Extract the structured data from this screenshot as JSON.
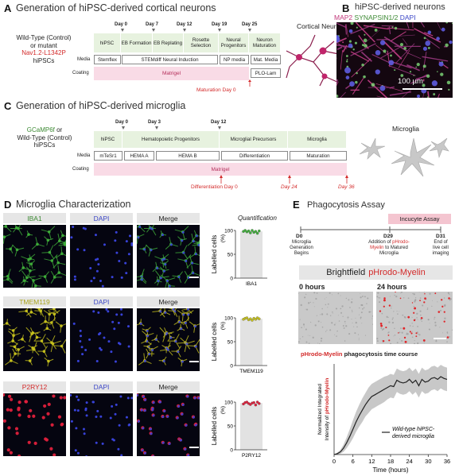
{
  "panelA": {
    "label": "A",
    "title": "Generation of hiPSC-derived cortical neurons",
    "left_text": [
      "Wild-Type (Control)",
      "or mutant"
    ],
    "mutant": "Nav1.2-L1342P",
    "hipscs": "hiPSCs",
    "days": [
      "Day 0",
      "Day 7",
      "Day 12",
      "Day 19",
      "Day 25"
    ],
    "stages": [
      "hiPSC",
      "EB Formation",
      "EB Replating",
      "Rosette Selection",
      "Neural Progenitors",
      "Neuron Maturation"
    ],
    "media_label": "Media",
    "media": [
      "Stemflex",
      "STEMdiff Neural Induction",
      "NP media",
      "Mat. Media"
    ],
    "coating_label": "Coating",
    "coating": [
      "Matrigel",
      "PLO-Lam"
    ],
    "maturation_note": "Maturation Day 0",
    "cell_label": "Cortical Neurons"
  },
  "panelB": {
    "label": "B",
    "title": "hiPSC-derived neurons",
    "stain1": "MAP2",
    "stain2": "SYNAPSIN1/2",
    "stain3": "DAPI",
    "scale": "100 µm"
  },
  "panelC": {
    "label": "C",
    "title": "Generation of hiPSC-derived microglia",
    "reporter": "GCaMP6f",
    "left_text": [
      "or",
      "Wild-Type (Control)",
      "hiPSCs"
    ],
    "days": [
      "Day 0",
      "Day 3",
      "Day 12"
    ],
    "stages": [
      "hiPSC",
      "Hematopoietic Progenitors",
      "Microglial Precursors",
      "Microglia"
    ],
    "media_label": "Media",
    "media": [
      "mTeSr1",
      "HEMA A",
      "HEMA B",
      "Differentiation",
      "Maturation"
    ],
    "coating_label": "Coating",
    "coating": "Matrigel",
    "diff_note": "Differentiation Day 0",
    "day24": "Day 24",
    "day36": "Day 36",
    "cell_label": "Microglia"
  },
  "panelD": {
    "label": "D",
    "title": "Microglia Characterization",
    "col_headers": [
      "DAPI",
      "Merge"
    ],
    "rows": [
      {
        "marker": "IBA1",
        "color": "#3fae3a"
      },
      {
        "marker": "TMEM119",
        "color": "#c7c21d"
      },
      {
        "marker": "P2RY12",
        "color": "#e0203c"
      }
    ],
    "quant_title": "Quantification",
    "ylabel": "Labelled cells",
    "unit": "(%)",
    "yticks": [
      "100",
      "50",
      "0"
    ]
  },
  "panelE": {
    "label": "E",
    "title": "Phagocytosis Assay",
    "incucyte": "Incucyte Assay",
    "d0": "D0",
    "d0_desc": [
      "Microglia",
      "Generation",
      "Begins"
    ],
    "d29": "D29",
    "d29_desc_pre": "Addition of",
    "d29_red": "pHrodo-",
    "d29_red2": "Myelin",
    "d29_desc_post": [
      "to Matured",
      "Microglia"
    ],
    "d31": "D31",
    "d31_desc": [
      "End of",
      "live cell",
      "imaging"
    ],
    "bf_title": "Brightfield",
    "bf_red": "pHrodo-Myelin",
    "time0": "0 hours",
    "time24": "24 hours",
    "chart_title_red": "pHrodo-Myelin",
    "chart_title_rest": "phagocytosis time course",
    "ylabel1": "Normalized Integrated",
    "ylabel2_pre": "Intensity of ",
    "ylabel2_red": "pHrodo-Myelin",
    "legend": [
      "Wild-type hiPSC-",
      "derived microglia"
    ]
  },
  "chart_data": [
    {
      "type": "scatter",
      "title": "Quantification",
      "categories": [
        "IBA1",
        "TMEM119",
        "P2RY12"
      ],
      "series": [
        {
          "name": "IBA1",
          "values": [
            98,
            100,
            97,
            99,
            95,
            100,
            96,
            98,
            94,
            99
          ]
        },
        {
          "name": "TMEM119",
          "values": [
            97,
            99,
            100,
            96,
            98,
            95,
            99,
            97,
            100,
            98
          ]
        },
        {
          "name": "P2RY12",
          "values": [
            96,
            99,
            100,
            97,
            95,
            98,
            99,
            94,
            100,
            97
          ]
        }
      ],
      "bar_means": [
        98,
        98,
        98
      ],
      "ylabel": "Labelled cells (%)",
      "ylim": [
        0,
        100
      ],
      "colors": [
        "#3fae3a",
        "#c7c21d",
        "#e0203c"
      ]
    },
    {
      "type": "line",
      "title": "pHrodo-Myelin phagocytosis time course",
      "xlabel": "Time (hours)",
      "ylabel": "Normalized Integrated Intensity of pHrodo-Myelin",
      "xlim": [
        0,
        36
      ],
      "ylim": [
        0,
        1.0
      ],
      "xticks": [
        0,
        6,
        12,
        18,
        24,
        30,
        36
      ],
      "x": [
        0,
        1,
        2,
        3,
        4,
        5,
        6,
        7,
        8,
        9,
        10,
        11,
        12,
        13,
        14,
        15,
        16,
        17,
        18,
        19,
        20,
        21,
        22,
        23,
        24,
        25,
        26,
        27,
        28,
        29,
        30,
        31,
        32,
        33,
        34,
        35,
        36
      ],
      "series": [
        {
          "name": "Wild-type hiPSC-derived microglia",
          "mean": [
            0.0,
            0.01,
            0.03,
            0.07,
            0.13,
            0.2,
            0.28,
            0.36,
            0.43,
            0.49,
            0.55,
            0.6,
            0.64,
            0.66,
            0.68,
            0.7,
            0.72,
            0.74,
            0.76,
            0.75,
            0.82,
            0.8,
            0.79,
            0.8,
            0.83,
            0.79,
            0.82,
            0.76,
            0.83,
            0.8,
            0.81,
            0.84,
            0.85,
            0.83,
            0.86,
            0.84,
            0.83
          ],
          "sd": [
            0.0,
            0.01,
            0.02,
            0.04,
            0.06,
            0.08,
            0.1,
            0.11,
            0.12,
            0.13,
            0.13,
            0.14,
            0.14,
            0.14,
            0.14,
            0.14,
            0.14,
            0.13,
            0.13,
            0.13,
            0.13,
            0.13,
            0.13,
            0.13,
            0.13,
            0.13,
            0.13,
            0.13,
            0.13,
            0.13,
            0.13,
            0.13,
            0.13,
            0.13,
            0.13,
            0.13,
            0.13
          ]
        }
      ],
      "colors": [
        "#222222",
        "#c8c8c8"
      ]
    }
  ]
}
